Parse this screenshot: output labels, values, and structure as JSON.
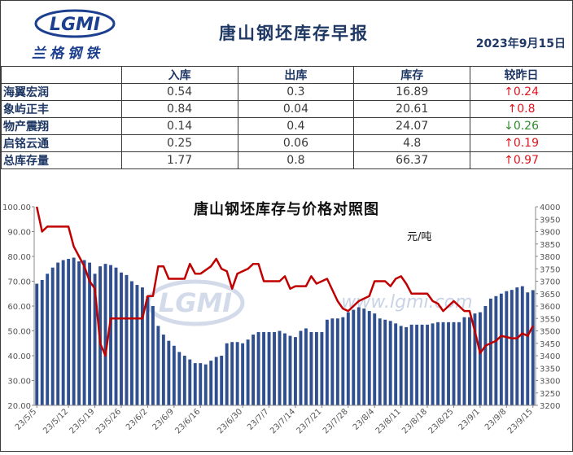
{
  "header": {
    "logo_name": "LGMI",
    "logo_cn": "兰格钢铁",
    "title": "唐山钢坯库存早报",
    "date": "2023年9月15日"
  },
  "table": {
    "columns": [
      "入库",
      "出库",
      "库存",
      "较昨日"
    ],
    "rows": [
      {
        "name": "海翼宏润",
        "in": "0.54",
        "out": "0.3",
        "stock": "16.89",
        "change": "↑0.24",
        "dir": "up"
      },
      {
        "name": "象屿正丰",
        "in": "0.84",
        "out": "0.04",
        "stock": "20.61",
        "change": "↑0.8",
        "dir": "up"
      },
      {
        "name": "物产震翔",
        "in": "0.14",
        "out": "0.4",
        "stock": "24.07",
        "change": "↓0.26",
        "dir": "down"
      },
      {
        "name": "启铭云通",
        "in": "0.25",
        "out": "0.06",
        "stock": "4.8",
        "change": "↑0.19",
        "dir": "up"
      },
      {
        "name": "总库存量",
        "in": "1.77",
        "out": "0.8",
        "stock": "66.37",
        "change": "↑0.97",
        "dir": "up"
      }
    ]
  },
  "chart_data": {
    "type": "bar+line",
    "title": "唐山钢坯库存与价格对照图",
    "unit_label": "元/吨",
    "watermark": "www.lgmi.com",
    "left_axis": {
      "min": 20,
      "max": 100,
      "ticks": [
        "20.00",
        "30.00",
        "40.00",
        "50.00",
        "60.00",
        "70.00",
        "80.00",
        "90.00",
        "100.00"
      ]
    },
    "right_axis": {
      "min": 3200,
      "max": 4000,
      "ticks": [
        "3200",
        "3250",
        "3300",
        "3350",
        "3400",
        "3450",
        "3500",
        "3550",
        "3600",
        "3650",
        "3700",
        "3750",
        "3800",
        "3850",
        "3900",
        "3950",
        "4000"
      ]
    },
    "x_tick_labels": [
      "23/5/5",
      "23/5/12",
      "23/5/19",
      "23/5/26",
      "23/6/2",
      "23/6/9",
      "23/6/16",
      "23/6/23",
      "23/6/30",
      "23/7/7",
      "23/7/14",
      "23/7/21",
      "23/7/28",
      "23/8/4",
      "23/8/11",
      "23/8/18",
      "23/8/25",
      "23/9/1",
      "23/9/8",
      "23/9/15"
    ],
    "bar_color": "#2f4f8f",
    "line_color": "#c00000",
    "inventory_series": [
      {
        "date": "23/5/5",
        "value": 69.0
      },
      {
        "date": "23/5/6",
        "value": 70.5
      },
      {
        "date": "23/5/8",
        "value": 73.0
      },
      {
        "date": "23/5/9",
        "value": 75.5
      },
      {
        "date": "23/5/10",
        "value": 77.5
      },
      {
        "date": "23/5/11",
        "value": 78.5
      },
      {
        "date": "23/5/12",
        "value": 79.0
      },
      {
        "date": "23/5/15",
        "value": 79.5
      },
      {
        "date": "23/5/16",
        "value": 78.0
      },
      {
        "date": "23/5/17",
        "value": 78.5
      },
      {
        "date": "23/5/18",
        "value": 77.5
      },
      {
        "date": "23/5/19",
        "value": 73.0
      },
      {
        "date": "23/5/22",
        "value": 76.0
      },
      {
        "date": "23/5/23",
        "value": 77.0
      },
      {
        "date": "23/5/24",
        "value": 76.5
      },
      {
        "date": "23/5/25",
        "value": 75.5
      },
      {
        "date": "23/5/26",
        "value": 73.5
      },
      {
        "date": "23/5/29",
        "value": 72.5
      },
      {
        "date": "23/5/30",
        "value": 70.0
      },
      {
        "date": "23/5/31",
        "value": 68.5
      },
      {
        "date": "23/6/1",
        "value": 67.5
      },
      {
        "date": "23/6/2",
        "value": 64.0
      },
      {
        "date": "23/6/5",
        "value": 60.0
      },
      {
        "date": "23/6/6",
        "value": 52.0
      },
      {
        "date": "23/6/7",
        "value": 48.5
      },
      {
        "date": "23/6/8",
        "value": 46.0
      },
      {
        "date": "23/6/9",
        "value": 44.0
      },
      {
        "date": "23/6/12",
        "value": 41.5
      },
      {
        "date": "23/6/13",
        "value": 40.0
      },
      {
        "date": "23/6/14",
        "value": 38.5
      },
      {
        "date": "23/6/15",
        "value": 37.0
      },
      {
        "date": "23/6/16",
        "value": 37.0
      },
      {
        "date": "23/6/19",
        "value": 36.5
      },
      {
        "date": "23/6/20",
        "value": 38.0
      },
      {
        "date": "23/6/21",
        "value": 39.5
      },
      {
        "date": "23/6/26",
        "value": 40.0
      },
      {
        "date": "23/6/27",
        "value": 45.0
      },
      {
        "date": "23/6/28",
        "value": 45.5
      },
      {
        "date": "23/6/29",
        "value": 45.5
      },
      {
        "date": "23/6/30",
        "value": 45.0
      },
      {
        "date": "23/7/3",
        "value": 46.5
      },
      {
        "date": "23/7/4",
        "value": 48.5
      },
      {
        "date": "23/7/5",
        "value": 49.5
      },
      {
        "date": "23/7/6",
        "value": 49.5
      },
      {
        "date": "23/7/7",
        "value": 49.5
      },
      {
        "date": "23/7/10",
        "value": 49.5
      },
      {
        "date": "23/7/11",
        "value": 50.0
      },
      {
        "date": "23/7/12",
        "value": 49.0
      },
      {
        "date": "23/7/13",
        "value": 48.0
      },
      {
        "date": "23/7/14",
        "value": 47.5
      },
      {
        "date": "23/7/17",
        "value": 50.0
      },
      {
        "date": "23/7/18",
        "value": 51.0
      },
      {
        "date": "23/7/19",
        "value": 49.5
      },
      {
        "date": "23/7/20",
        "value": 49.5
      },
      {
        "date": "23/7/21",
        "value": 49.5
      },
      {
        "date": "23/7/24",
        "value": 54.5
      },
      {
        "date": "23/7/25",
        "value": 55.0
      },
      {
        "date": "23/7/26",
        "value": 55.0
      },
      {
        "date": "23/7/27",
        "value": 55.5
      },
      {
        "date": "23/7/28",
        "value": 57.5
      },
      {
        "date": "23/7/31",
        "value": 58.5
      },
      {
        "date": "23/8/1",
        "value": 59.5
      },
      {
        "date": "23/8/2",
        "value": 59.0
      },
      {
        "date": "23/8/3",
        "value": 58.0
      },
      {
        "date": "23/8/4",
        "value": 57.0
      },
      {
        "date": "23/8/7",
        "value": 55.0
      },
      {
        "date": "23/8/8",
        "value": 54.5
      },
      {
        "date": "23/8/9",
        "value": 54.0
      },
      {
        "date": "23/8/10",
        "value": 53.0
      },
      {
        "date": "23/8/11",
        "value": 52.0
      },
      {
        "date": "23/8/14",
        "value": 51.5
      },
      {
        "date": "23/8/15",
        "value": 52.5
      },
      {
        "date": "23/8/16",
        "value": 52.5
      },
      {
        "date": "23/8/17",
        "value": 52.5
      },
      {
        "date": "23/8/18",
        "value": 52.5
      },
      {
        "date": "23/8/21",
        "value": 53.0
      },
      {
        "date": "23/8/22",
        "value": 53.5
      },
      {
        "date": "23/8/23",
        "value": 53.5
      },
      {
        "date": "23/8/24",
        "value": 53.5
      },
      {
        "date": "23/8/25",
        "value": 53.5
      },
      {
        "date": "23/8/28",
        "value": 53.5
      },
      {
        "date": "23/8/29",
        "value": 55.5
      },
      {
        "date": "23/8/30",
        "value": 55.5
      },
      {
        "date": "23/8/31",
        "value": 57.0
      },
      {
        "date": "23/9/1",
        "value": 57.5
      },
      {
        "date": "23/9/4",
        "value": 60.0
      },
      {
        "date": "23/9/5",
        "value": 63.0
      },
      {
        "date": "23/9/6",
        "value": 64.0
      },
      {
        "date": "23/9/7",
        "value": 65.0
      },
      {
        "date": "23/9/8",
        "value": 66.0
      },
      {
        "date": "23/9/11",
        "value": 66.5
      },
      {
        "date": "23/9/12",
        "value": 67.5
      },
      {
        "date": "23/9/13",
        "value": 68.0
      },
      {
        "date": "23/9/14",
        "value": 65.5
      },
      {
        "date": "23/9/15",
        "value": 66.4
      }
    ],
    "price_series": [
      {
        "date": "23/5/5",
        "value": 4000
      },
      {
        "date": "23/5/6",
        "value": 3900
      },
      {
        "date": "23/5/8",
        "value": 3920
      },
      {
        "date": "23/5/12",
        "value": 3920
      },
      {
        "date": "23/5/15",
        "value": 3840
      },
      {
        "date": "23/5/16",
        "value": 3800
      },
      {
        "date": "23/5/17",
        "value": 3760
      },
      {
        "date": "23/5/18",
        "value": 3700
      },
      {
        "date": "23/5/19",
        "value": 3670
      },
      {
        "date": "23/5/22",
        "value": 3450
      },
      {
        "date": "23/5/23",
        "value": 3400
      },
      {
        "date": "23/5/24",
        "value": 3550
      },
      {
        "date": "23/6/1",
        "value": 3550
      },
      {
        "date": "23/6/2",
        "value": 3640
      },
      {
        "date": "23/6/5",
        "value": 3640
      },
      {
        "date": "23/6/6",
        "value": 3760
      },
      {
        "date": "23/6/7",
        "value": 3760
      },
      {
        "date": "23/6/8",
        "value": 3710
      },
      {
        "date": "23/6/13",
        "value": 3710
      },
      {
        "date": "23/6/14",
        "value": 3770
      },
      {
        "date": "23/6/15",
        "value": 3730
      },
      {
        "date": "23/6/16",
        "value": 3730
      },
      {
        "date": "23/6/20",
        "value": 3760
      },
      {
        "date": "23/6/21",
        "value": 3790
      },
      {
        "date": "23/6/26",
        "value": 3750
      },
      {
        "date": "23/6/27",
        "value": 3740
      },
      {
        "date": "23/6/28",
        "value": 3670
      },
      {
        "date": "23/6/29",
        "value": 3730
      },
      {
        "date": "23/7/3",
        "value": 3750
      },
      {
        "date": "23/7/4",
        "value": 3770
      },
      {
        "date": "23/7/5",
        "value": 3770
      },
      {
        "date": "23/7/6",
        "value": 3700
      },
      {
        "date": "23/7/11",
        "value": 3700
      },
      {
        "date": "23/7/12",
        "value": 3720
      },
      {
        "date": "23/7/13",
        "value": 3670
      },
      {
        "date": "23/7/14",
        "value": 3680
      },
      {
        "date": "23/7/18",
        "value": 3680
      },
      {
        "date": "23/7/19",
        "value": 3720
      },
      {
        "date": "23/7/20",
        "value": 3690
      },
      {
        "date": "23/7/24",
        "value": 3710
      },
      {
        "date": "23/7/26",
        "value": 3620
      },
      {
        "date": "23/7/27",
        "value": 3590
      },
      {
        "date": "23/7/28",
        "value": 3580
      },
      {
        "date": "23/8/1",
        "value": 3620
      },
      {
        "date": "23/8/3",
        "value": 3640
      },
      {
        "date": "23/8/4",
        "value": 3700
      },
      {
        "date": "23/8/8",
        "value": 3700
      },
      {
        "date": "23/8/9",
        "value": 3680
      },
      {
        "date": "23/8/10",
        "value": 3710
      },
      {
        "date": "23/8/11",
        "value": 3720
      },
      {
        "date": "23/8/14",
        "value": 3690
      },
      {
        "date": "23/8/15",
        "value": 3650
      },
      {
        "date": "23/8/18",
        "value": 3650
      },
      {
        "date": "23/8/21",
        "value": 3620
      },
      {
        "date": "23/8/22",
        "value": 3610
      },
      {
        "date": "23/8/23",
        "value": 3580
      },
      {
        "date": "23/8/24",
        "value": 3600
      },
      {
        "date": "23/8/25",
        "value": 3620
      },
      {
        "date": "23/8/29",
        "value": 3580
      },
      {
        "date": "23/8/30",
        "value": 3580
      },
      {
        "date": "23/8/31",
        "value": 3500
      },
      {
        "date": "23/9/1",
        "value": 3410
      },
      {
        "date": "23/9/4",
        "value": 3440
      },
      {
        "date": "23/9/5",
        "value": 3450
      },
      {
        "date": "23/9/6",
        "value": 3460
      },
      {
        "date": "23/9/7",
        "value": 3480
      },
      {
        "date": "23/9/11",
        "value": 3470
      },
      {
        "date": "23/9/12",
        "value": 3470
      },
      {
        "date": "23/9/13",
        "value": 3490
      },
      {
        "date": "23/9/14",
        "value": 3480
      },
      {
        "date": "23/9/15",
        "value": 3520
      }
    ]
  }
}
